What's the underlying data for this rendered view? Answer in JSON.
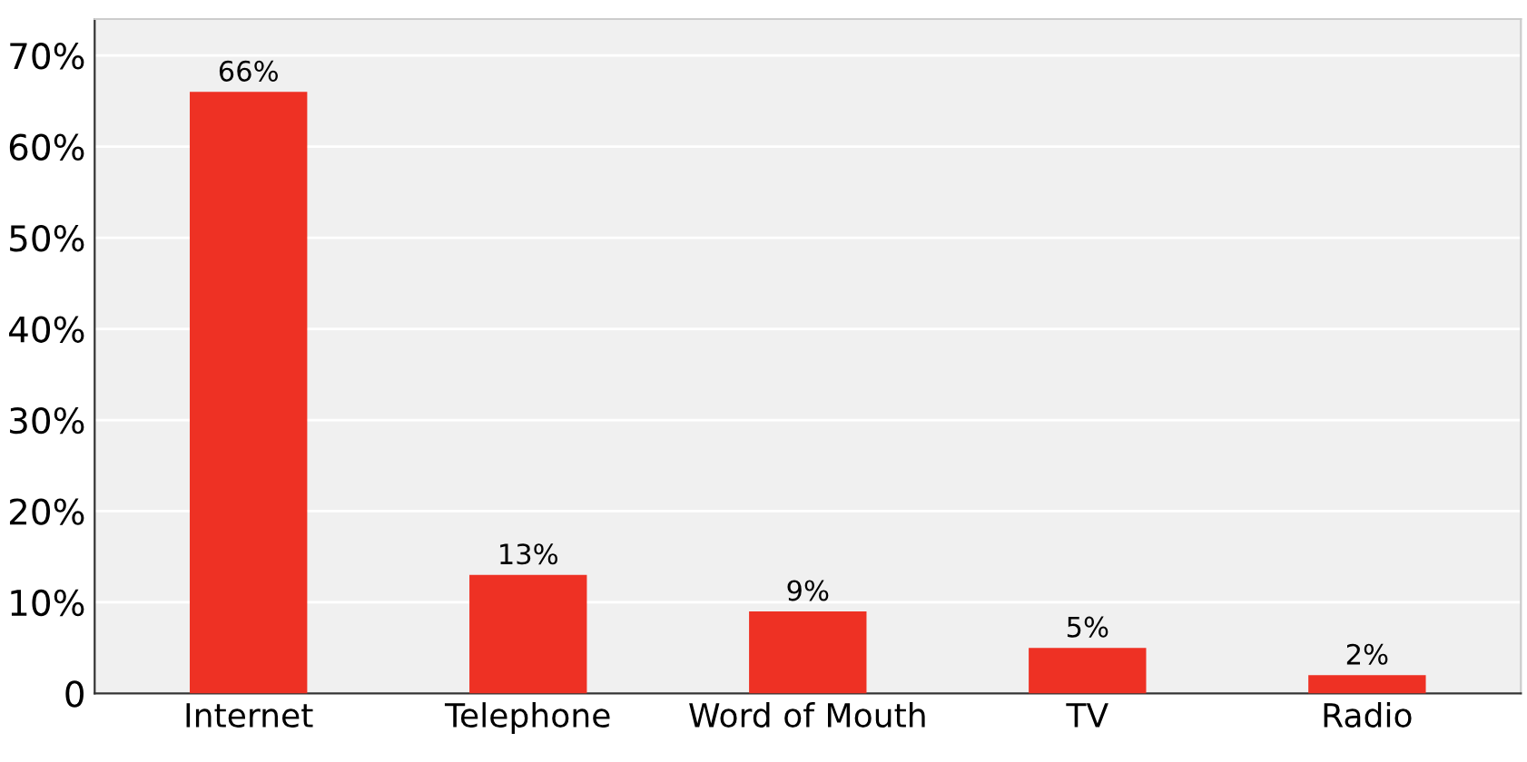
{
  "chart_data": {
    "type": "bar",
    "categories": [
      "Internet",
      "Telephone",
      "Word of Mouth",
      "TV",
      "Radio"
    ],
    "values": [
      66,
      13,
      9,
      5,
      2
    ],
    "value_labels": [
      "66%",
      "13%",
      "9%",
      "5%",
      "2%"
    ],
    "color": "#ee3124",
    "ylim": [
      0,
      74
    ],
    "yticks": [
      {
        "value": 0,
        "label": "0"
      },
      {
        "value": 10,
        "label": "10%"
      },
      {
        "value": 20,
        "label": "20%"
      },
      {
        "value": 30,
        "label": "30%"
      },
      {
        "value": 40,
        "label": "40%"
      },
      {
        "value": 50,
        "label": "50%"
      },
      {
        "value": 60,
        "label": "60%"
      },
      {
        "value": 70,
        "label": "70%"
      }
    ],
    "grid": "y",
    "legend": false
  }
}
